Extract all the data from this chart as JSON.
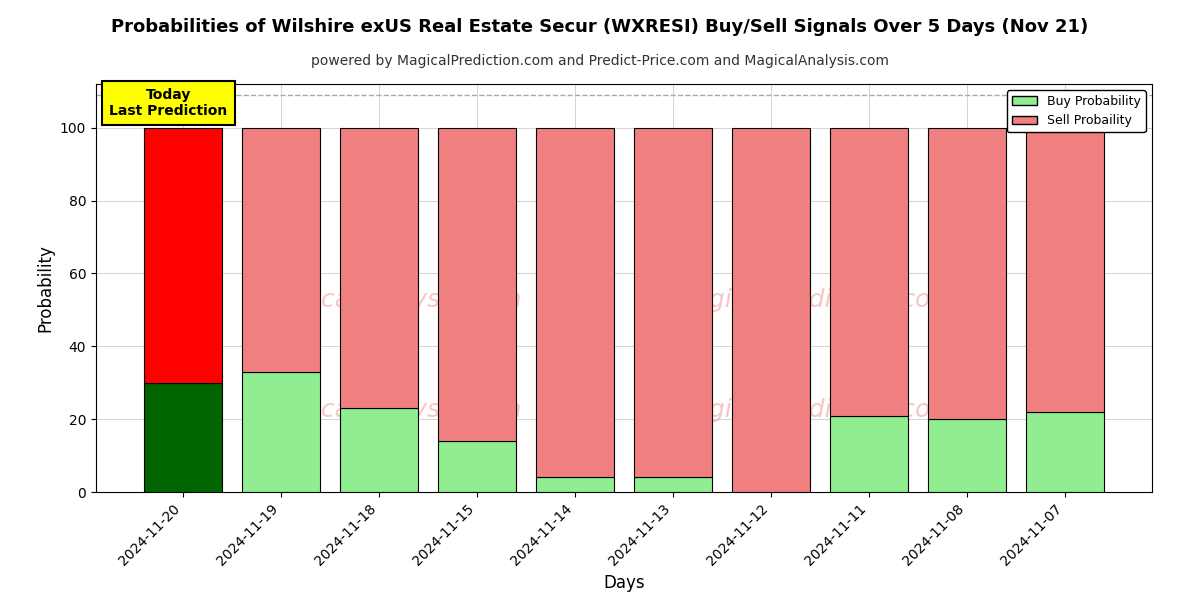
{
  "title": "Probabilities of Wilshire exUS Real Estate Secur (WXRESI) Buy/Sell Signals Over 5 Days (Nov 21)",
  "subtitle": "powered by MagicalPrediction.com and Predict-Price.com and MagicalAnalysis.com",
  "xlabel": "Days",
  "ylabel": "Probability",
  "categories": [
    "2024-11-20",
    "2024-11-19",
    "2024-11-18",
    "2024-11-15",
    "2024-11-14",
    "2024-11-13",
    "2024-11-12",
    "2024-11-11",
    "2024-11-08",
    "2024-11-07"
  ],
  "buy_values": [
    30,
    33,
    23,
    14,
    4,
    4,
    0,
    21,
    20,
    22
  ],
  "sell_values": [
    70,
    67,
    77,
    86,
    96,
    96,
    100,
    79,
    80,
    78
  ],
  "today_buy_color": "#006400",
  "today_sell_color": "#FF0000",
  "other_buy_color": "#90EE90",
  "other_sell_color": "#F08080",
  "bar_edge_color": "#000000",
  "today_annotation_bg": "#FFFF00",
  "today_annotation_text": "Today\nLast Prediction",
  "legend_buy_label": "Buy Probability",
  "legend_sell_label": "Sell Probaility",
  "ylim": [
    0,
    112
  ],
  "yticks": [
    0,
    20,
    40,
    60,
    80,
    100
  ],
  "dashed_line_y": 109,
  "background_color": "#FFFFFF",
  "grid_color": "#AAAAAA",
  "figsize": [
    12,
    6
  ],
  "dpi": 100
}
